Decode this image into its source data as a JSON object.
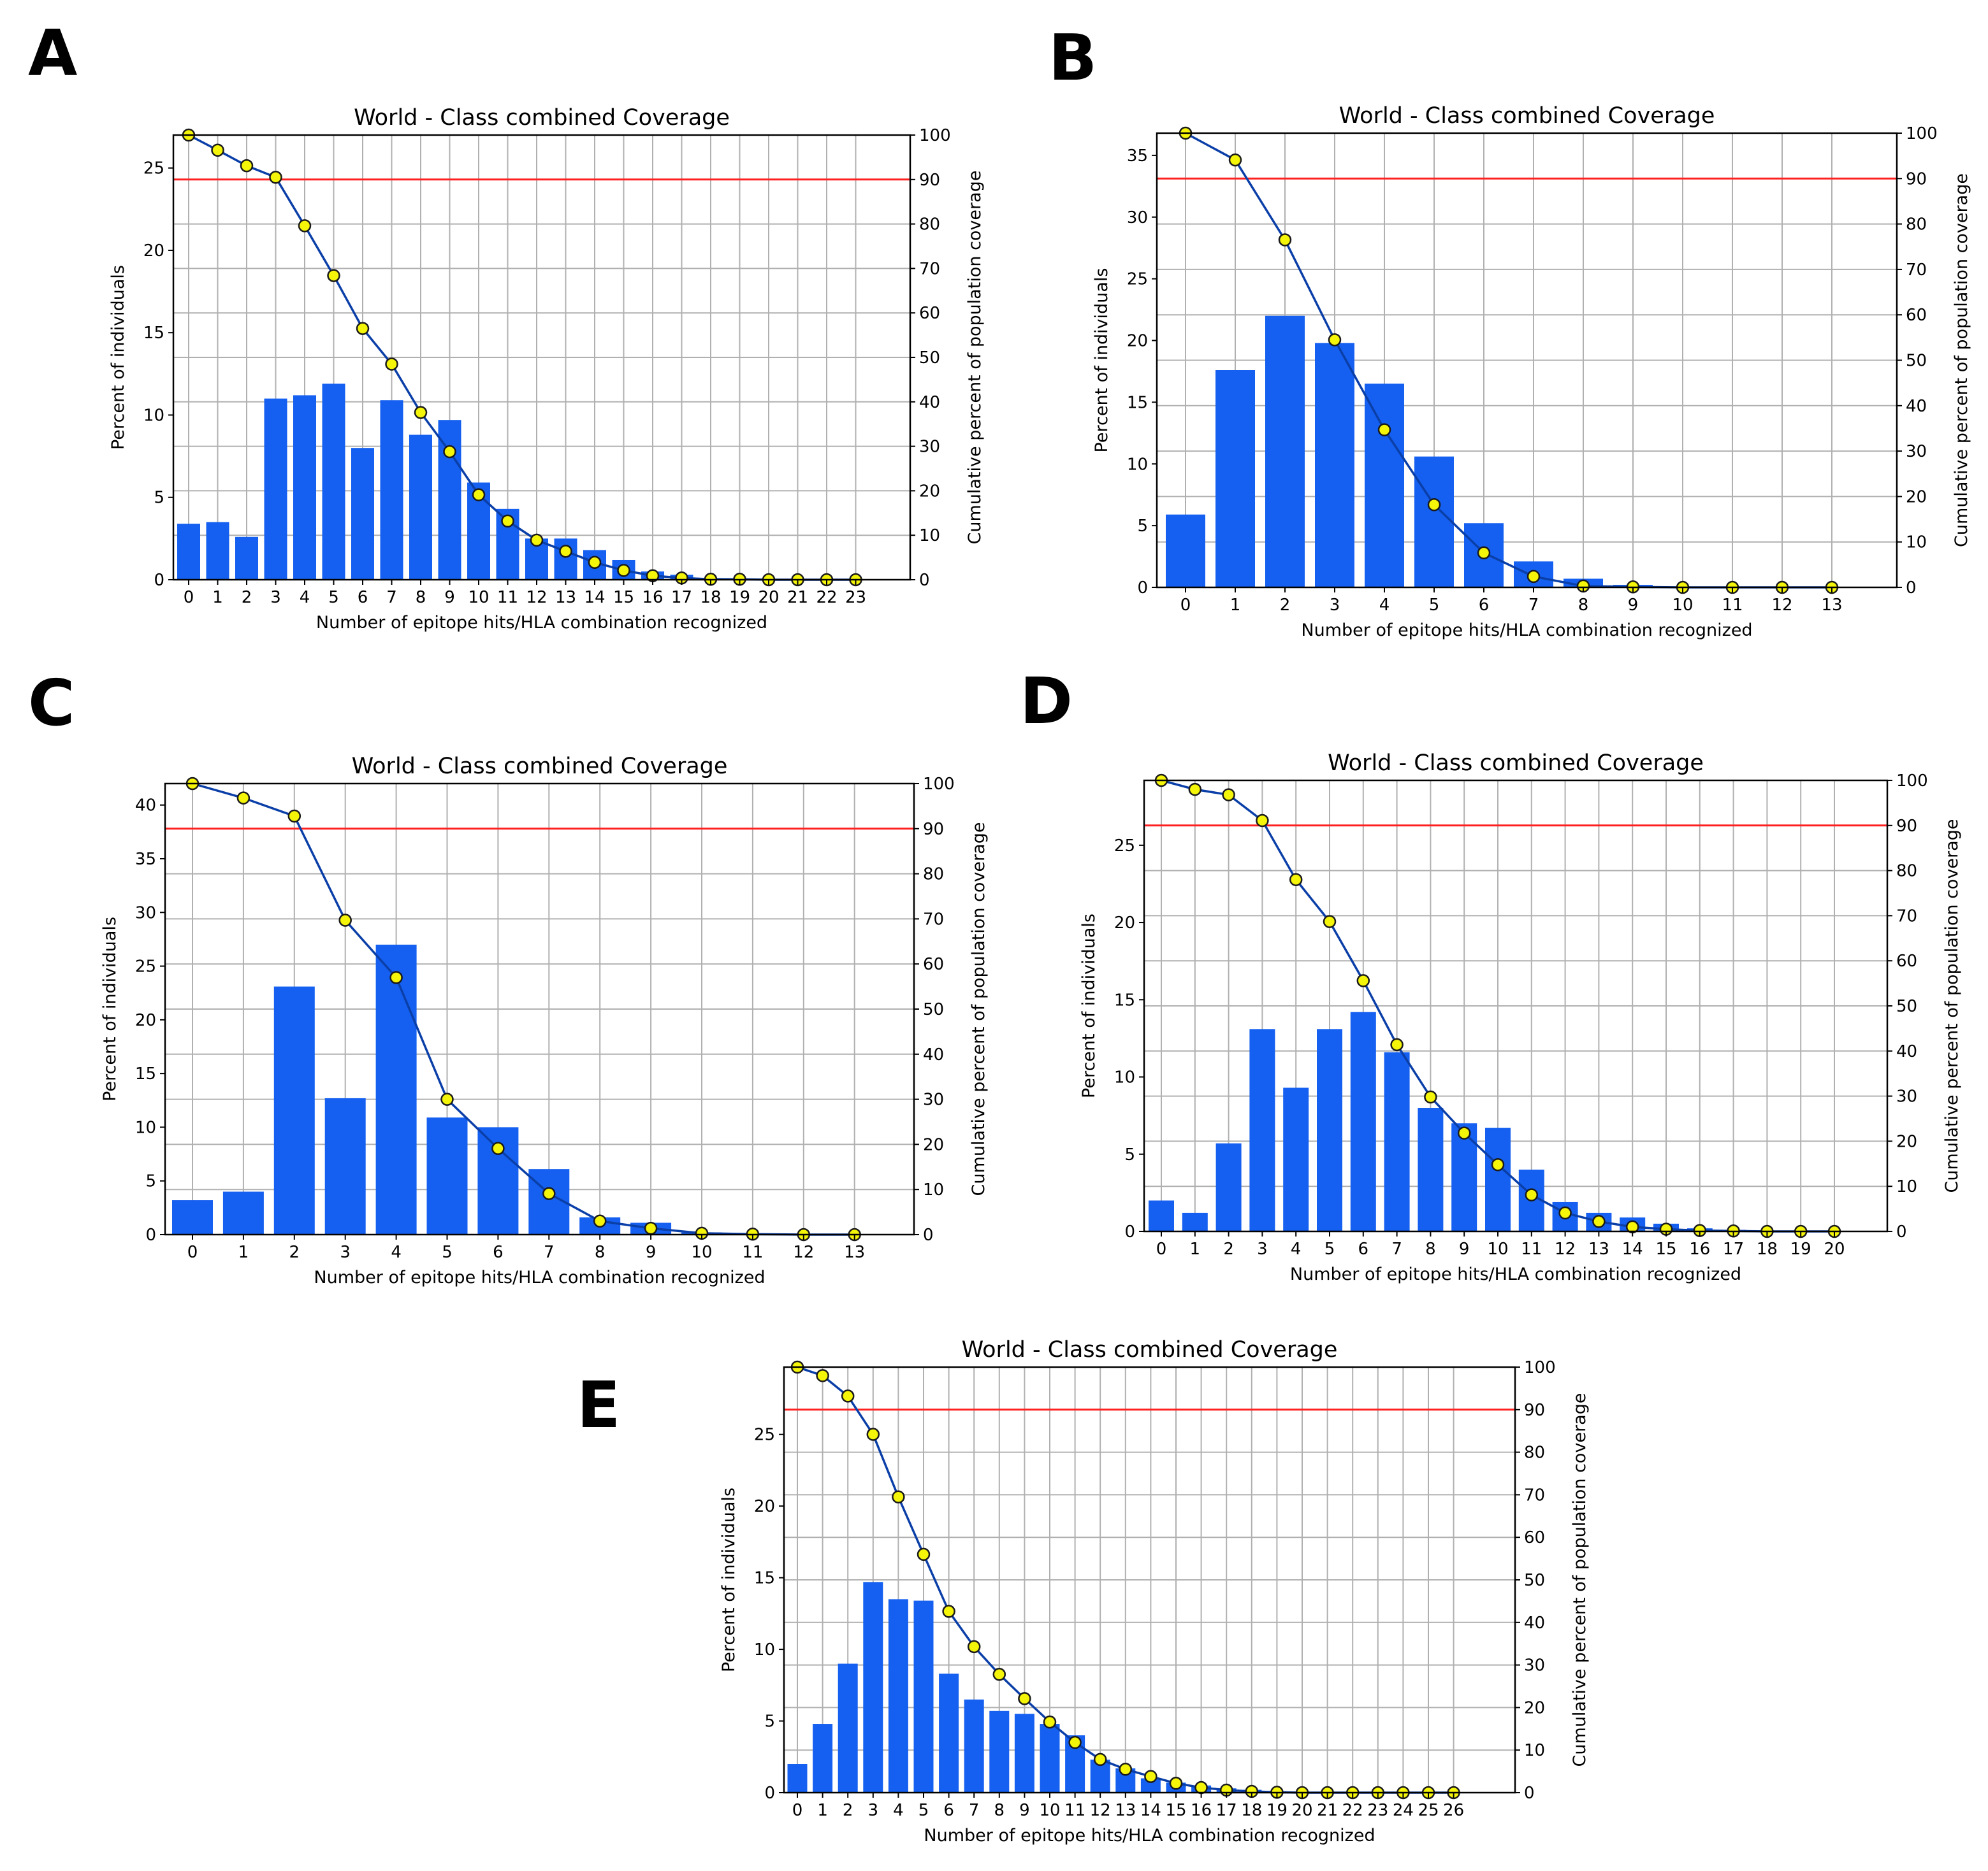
{
  "chart_data": [
    {
      "panel": "A",
      "type": "bar",
      "title": "World - Class combined Coverage",
      "xlabel": "Number of epitope hits/HLA combination recognized",
      "ylabel": "Percent of individuals",
      "y2label": "Cumulative percent of population coverage",
      "categories": [
        "0",
        "1",
        "2",
        "3",
        "4",
        "5",
        "6",
        "7",
        "8",
        "9",
        "10",
        "11",
        "12",
        "13",
        "14",
        "15",
        "16",
        "17",
        "18",
        "19",
        "20",
        "21",
        "22",
        "23"
      ],
      "series": [
        {
          "name": "Percent of individuals",
          "axis": "left",
          "type": "bar",
          "values": [
            3.4,
            3.5,
            2.6,
            11.0,
            11.2,
            11.9,
            8.0,
            10.9,
            8.8,
            9.7,
            5.9,
            4.3,
            2.5,
            2.5,
            1.8,
            1.2,
            0.5,
            0.3,
            0.1,
            0.05,
            0.03,
            0.02,
            0.01,
            0.01
          ]
        },
        {
          "name": "Cumulative percent of population coverage",
          "axis": "right",
          "type": "line",
          "values": [
            100,
            96.6,
            93.1,
            90.5,
            79.6,
            68.4,
            56.5,
            48.5,
            37.6,
            28.8,
            19.1,
            13.2,
            8.9,
            6.4,
            3.9,
            2.1,
            0.9,
            0.4,
            0.1,
            0.1,
            0.0,
            0.0,
            0.0,
            0.0
          ]
        }
      ],
      "ylim": [
        0,
        27
      ],
      "yticks": [
        0,
        5,
        10,
        15,
        20,
        25
      ],
      "y2lim": [
        0,
        100
      ],
      "y2ticks": [
        0,
        10,
        20,
        30,
        40,
        50,
        60,
        70,
        80,
        90,
        100
      ],
      "threshold": 90
    },
    {
      "panel": "B",
      "type": "bar",
      "title": "World - Class combined Coverage",
      "xlabel": "Number of epitope hits/HLA combination recognized",
      "ylabel": "Percent of individuals",
      "y2label": "Cumulative percent of population coverage",
      "categories": [
        "0",
        "1",
        "2",
        "3",
        "4",
        "5",
        "6",
        "7",
        "8",
        "9",
        "10",
        "11",
        "12",
        "13"
      ],
      "series": [
        {
          "name": "Percent of individuals",
          "axis": "left",
          "type": "bar",
          "values": [
            5.9,
            17.6,
            22.0,
            19.8,
            16.5,
            10.6,
            5.2,
            2.1,
            0.7,
            0.2,
            0.05,
            0.02,
            0.01,
            0.01
          ]
        },
        {
          "name": "Cumulative percent of population coverage",
          "axis": "right",
          "type": "line",
          "values": [
            100,
            94.1,
            76.5,
            54.5,
            34.7,
            18.2,
            7.6,
            2.4,
            0.3,
            0.1,
            0.0,
            0.0,
            0.0,
            0.0
          ]
        }
      ],
      "ylim": [
        0,
        36.8
      ],
      "yticks": [
        0,
        5,
        10,
        15,
        20,
        25,
        30,
        35
      ],
      "y2lim": [
        0,
        100
      ],
      "y2ticks": [
        0,
        10,
        20,
        30,
        40,
        50,
        60,
        70,
        80,
        90,
        100
      ],
      "threshold": 90
    },
    {
      "panel": "C",
      "type": "bar",
      "title": "World - Class combined Coverage",
      "xlabel": "Number of epitope hits/HLA combination recognized",
      "ylabel": "Percent of individuals",
      "y2label": "Cumulative percent of population coverage",
      "categories": [
        "0",
        "1",
        "2",
        "3",
        "4",
        "5",
        "6",
        "7",
        "8",
        "9",
        "10",
        "11",
        "12",
        "13"
      ],
      "series": [
        {
          "name": "Percent of individuals",
          "axis": "left",
          "type": "bar",
          "values": [
            3.2,
            4.0,
            23.1,
            12.7,
            27.0,
            10.9,
            10.0,
            6.1,
            1.6,
            1.1,
            0.2,
            0.05,
            0.02,
            0.01
          ]
        },
        {
          "name": "Cumulative percent of population coverage",
          "axis": "right",
          "type": "line",
          "values": [
            100,
            96.8,
            92.8,
            69.7,
            57.0,
            30.0,
            19.1,
            9.1,
            3.0,
            1.4,
            0.3,
            0.1,
            0.0,
            0.0
          ]
        }
      ],
      "ylim": [
        0,
        42
      ],
      "yticks": [
        0,
        5,
        10,
        15,
        20,
        25,
        30,
        35,
        40
      ],
      "y2lim": [
        0,
        100
      ],
      "y2ticks": [
        0,
        10,
        20,
        30,
        40,
        50,
        60,
        70,
        80,
        90,
        100
      ],
      "threshold": 90
    },
    {
      "panel": "D",
      "type": "bar",
      "title": "World - Class combined Coverage",
      "xlabel": "Number of epitope hits/HLA combination recognized",
      "ylabel": "Percent of individuals",
      "y2label": "Cumulative percent of population coverage",
      "categories": [
        "0",
        "1",
        "2",
        "3",
        "4",
        "5",
        "6",
        "7",
        "8",
        "9",
        "10",
        "11",
        "12",
        "13",
        "14",
        "15",
        "16",
        "17",
        "18",
        "19",
        "20"
      ],
      "series": [
        {
          "name": "Percent of individuals",
          "axis": "left",
          "type": "bar",
          "values": [
            2.0,
            1.2,
            5.7,
            13.1,
            9.3,
            13.1,
            14.2,
            11.6,
            8.0,
            7.0,
            6.7,
            4.0,
            1.9,
            1.2,
            0.9,
            0.5,
            0.2,
            0.1,
            0.05,
            0.02,
            0.01
          ]
        },
        {
          "name": "Cumulative percent of population coverage",
          "axis": "right",
          "type": "line",
          "values": [
            100,
            98.0,
            96.8,
            91.1,
            78.0,
            68.7,
            55.6,
            41.4,
            29.8,
            21.8,
            14.8,
            8.1,
            4.1,
            2.2,
            1.0,
            0.5,
            0.2,
            0.1,
            0.0,
            0.0,
            0.0
          ]
        }
      ],
      "ylim": [
        0,
        29.2
      ],
      "yticks": [
        0,
        5,
        10,
        15,
        20,
        25
      ],
      "y2lim": [
        0,
        100
      ],
      "y2ticks": [
        0,
        10,
        20,
        30,
        40,
        50,
        60,
        70,
        80,
        90,
        100
      ],
      "threshold": 90
    },
    {
      "panel": "E",
      "type": "bar",
      "title": "World - Class combined Coverage",
      "xlabel": "Number of epitope hits/HLA combination recognized",
      "ylabel": "Percent of individuals",
      "y2label": "Cumulative percent of population coverage",
      "categories": [
        "0",
        "1",
        "2",
        "3",
        "4",
        "5",
        "6",
        "7",
        "8",
        "9",
        "10",
        "11",
        "12",
        "13",
        "14",
        "15",
        "16",
        "17",
        "18",
        "19",
        "20",
        "21",
        "22",
        "23",
        "24",
        "25",
        "26"
      ],
      "series": [
        {
          "name": "Percent of individuals",
          "axis": "left",
          "type": "bar",
          "values": [
            2.0,
            4.8,
            9.0,
            14.7,
            13.5,
            13.4,
            8.3,
            6.5,
            5.7,
            5.5,
            4.8,
            4.0,
            2.3,
            1.7,
            1.0,
            0.7,
            0.5,
            0.3,
            0.2,
            0.1,
            0.05,
            0.03,
            0.02,
            0.01,
            0.01,
            0.01,
            0.01
          ]
        },
        {
          "name": "Cumulative percent of population coverage",
          "axis": "right",
          "type": "line",
          "values": [
            100,
            98.0,
            93.2,
            84.2,
            69.5,
            56.0,
            42.6,
            34.3,
            27.8,
            22.1,
            16.6,
            11.8,
            7.8,
            5.5,
            3.8,
            2.2,
            1.2,
            0.6,
            0.3,
            0.1,
            0.0,
            0.0,
            0.0,
            0.0,
            0.0,
            0.0,
            0.0
          ]
        }
      ],
      "ylim": [
        0,
        29.7
      ],
      "yticks": [
        0,
        5,
        10,
        15,
        20,
        25
      ],
      "y2lim": [
        0,
        100
      ],
      "y2ticks": [
        0,
        10,
        20,
        30,
        40,
        50,
        60,
        70,
        80,
        90,
        100
      ],
      "threshold": 90
    }
  ]
}
